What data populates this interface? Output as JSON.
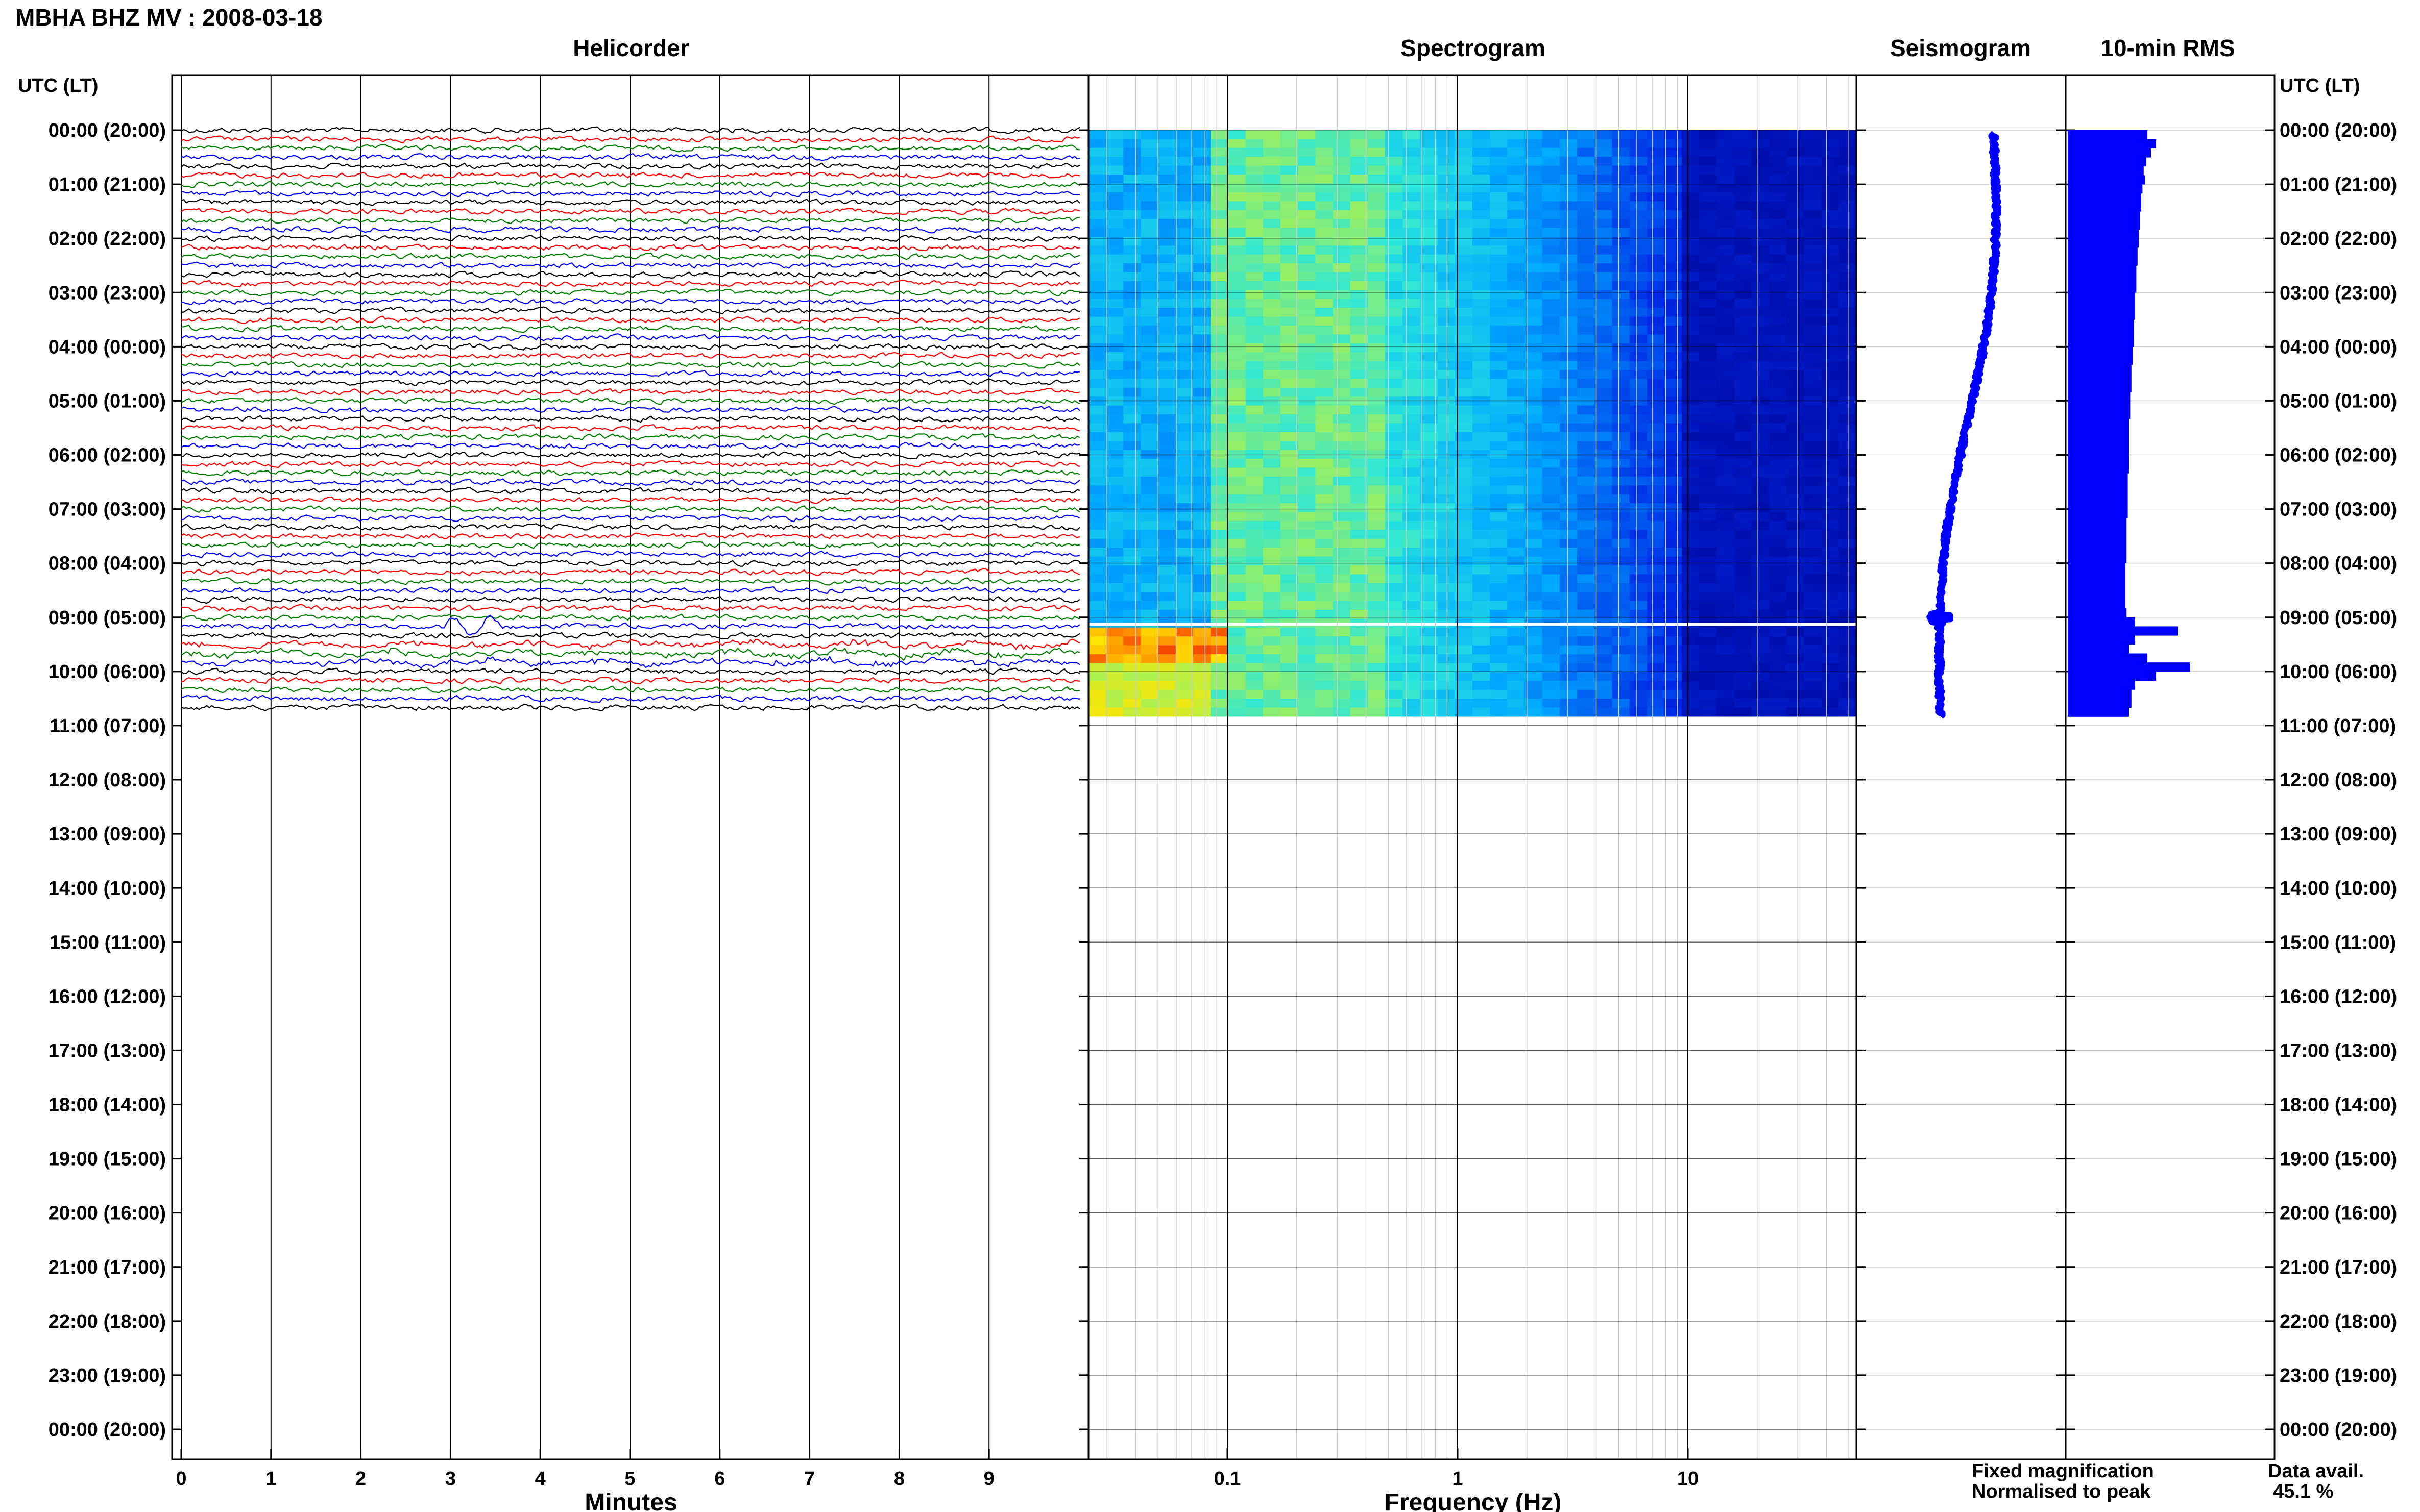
{
  "title": "MBHA BHZ MV : 2008-03-18",
  "panels": {
    "helicorder": "Helicorder",
    "spectrogram": "Spectrogram",
    "seismogram": "Seismogram",
    "rms": "10-min RMS"
  },
  "time_axis_label": "UTC (LT)",
  "time_labels": [
    "00:00 (20:00)",
    "01:00 (21:00)",
    "02:00 (22:00)",
    "03:00 (23:00)",
    "04:00 (00:00)",
    "05:00 (01:00)",
    "06:00 (02:00)",
    "07:00 (03:00)",
    "08:00 (04:00)",
    "09:00 (05:00)",
    "10:00 (06:00)",
    "11:00 (07:00)",
    "12:00 (08:00)",
    "13:00 (09:00)",
    "14:00 (10:00)",
    "15:00 (11:00)",
    "16:00 (12:00)",
    "17:00 (13:00)",
    "18:00 (14:00)",
    "19:00 (15:00)",
    "20:00 (16:00)",
    "21:00 (17:00)",
    "22:00 (18:00)",
    "23:00 (19:00)",
    "00:00 (20:00)"
  ],
  "legend": {
    "fixed": "Fixed magnification",
    "normalised": "Normalised to peak",
    "fixed_color": "#0000ff",
    "normalised_color": "#ff0000"
  },
  "availability": {
    "label": "Data avail.",
    "value": "45.1 %"
  },
  "trace_colors": [
    "#000000",
    "#ff0000",
    "#008000",
    "#0000ff"
  ],
  "chart_data": {
    "helicorder": {
      "type": "line",
      "xlabel": "Minutes",
      "x_ticks": [
        0,
        1,
        2,
        3,
        4,
        5,
        6,
        7,
        8,
        9
      ],
      "xlim": [
        0,
        10
      ],
      "ylim_hours": [
        0,
        24
      ],
      "traces_per_hour": 6,
      "data_end_hour": 10.83
    },
    "spectrogram": {
      "type": "heatmap",
      "xlabel": "Frequency (Hz)",
      "x_scale": "log",
      "x_ticks": [
        0.1,
        1,
        10
      ],
      "x_tick_labels": [
        "0.1",
        "1",
        "10"
      ],
      "xlim": [
        0.02,
        50
      ],
      "data_end_hour": 10.83,
      "gap_hour": 9.1
    },
    "seismogram": {
      "type": "line",
      "data_end_hour": 10.83
    },
    "rms": {
      "type": "bar",
      "interval_minutes": 10,
      "data_end_hour": 10.83,
      "values": [
        0.65,
        0.72,
        0.68,
        0.64,
        0.62,
        0.63,
        0.61,
        0.6,
        0.6,
        0.59,
        0.59,
        0.58,
        0.58,
        0.57,
        0.57,
        0.56,
        0.56,
        0.56,
        0.55,
        0.55,
        0.55,
        0.54,
        0.54,
        0.54,
        0.53,
        0.53,
        0.52,
        0.52,
        0.52,
        0.51,
        0.51,
        0.51,
        0.5,
        0.5,
        0.5,
        0.5,
        0.5,
        0.5,
        0.49,
        0.49,
        0.49,
        0.49,
        0.49,
        0.48,
        0.48,
        0.48,
        0.48,
        0.48,
        0.47,
        0.47,
        0.47,
        0.47,
        0.47,
        0.48,
        0.55,
        0.9,
        0.55,
        0.5,
        0.65,
        1.0,
        0.72,
        0.55,
        0.52,
        0.52,
        0.5
      ]
    }
  }
}
